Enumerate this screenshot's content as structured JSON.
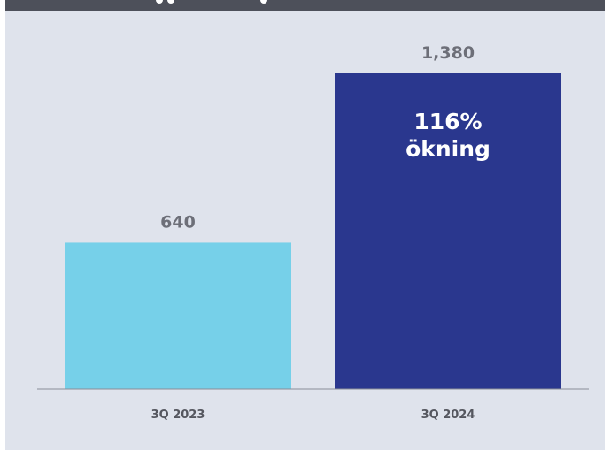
{
  "chart_data": {
    "type": "bar",
    "categories": [
      "3Q 2023",
      "3Q 2024"
    ],
    "values": [
      640,
      1380
    ],
    "value_labels": [
      "640",
      "1,380"
    ],
    "colors": [
      "#76d0e9",
      "#2a378e"
    ],
    "annotation": {
      "category": "3Q 2024",
      "lines": [
        "116%",
        "ökning"
      ]
    },
    "ylim": [
      0,
      1380
    ],
    "grid": false,
    "legend": false
  },
  "colors": {
    "background": "#dfe3ec",
    "header_bar": "#4d505a",
    "axis": "#8a8d97"
  }
}
